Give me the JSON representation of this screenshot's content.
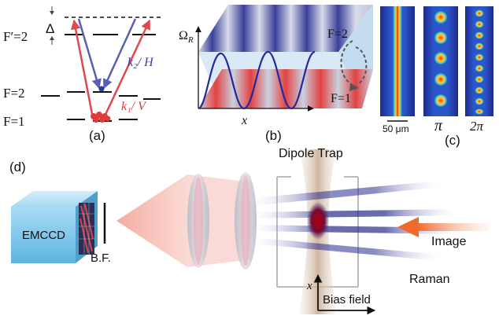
{
  "panel_a": {
    "panel_label": "(a)",
    "delta": "Δ",
    "excited_label": "F′=2",
    "f2_label": "F=2",
    "f1_label": "F=1",
    "k2_label": "k₂/ H",
    "k1_label": "k₁/ V",
    "colors": {
      "blue_beam": "#5a5fb4",
      "red_beam": "#e0484f",
      "atoms": "#e03a3a",
      "atom_blue": "#2c3a9a"
    }
  },
  "panel_b": {
    "panel_label": "(b)",
    "y_axis_label": "Ω",
    "y_axis_subscript": "R",
    "x_axis_label": "x",
    "upper_state_label": "F=2",
    "lower_state_label": "F=1",
    "wave_color": "#1f2a9c"
  },
  "panel_c": {
    "panel_label": "(c)",
    "scale_bar_label": "50 μm",
    "pulse_labels": [
      "π",
      "2π"
    ],
    "image_spot_counts": [
      0,
      5,
      10
    ]
  },
  "panel_d": {
    "panel_label": "(d)",
    "camera_label": "EMCCD",
    "filter_label": "B.F.",
    "trap_label": "Dipole Trap",
    "image_beam_label": "Image",
    "raman_label": "Raman",
    "x_axis_label": "x",
    "bias_label": "Bias field",
    "colors": {
      "camera": "#7cc6ea",
      "image_arrow": "#f26a2a",
      "raman": "#2a2c8c"
    }
  }
}
